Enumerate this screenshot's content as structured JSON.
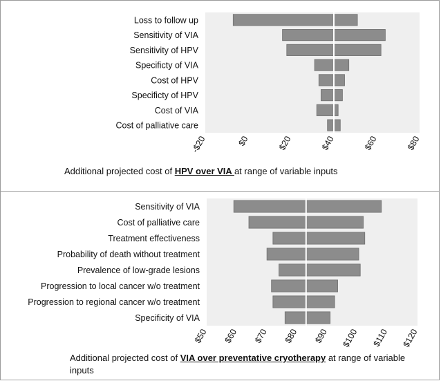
{
  "chart_data": [
    {
      "type": "bar",
      "orientation": "horizontal-tornado",
      "xlim": [
        -20,
        80
      ],
      "x_ticks": [
        "-$20",
        "$0",
        "$20",
        "$40",
        "$60",
        "$80"
      ],
      "x_tick_values": [
        -20,
        0,
        20,
        40,
        60,
        80
      ],
      "base": 40,
      "categories": [
        "Loss to follow up",
        "Sensitivity of VIA",
        "Sensitivity of HPV",
        "Specificty of VIA",
        "Cost of HPV",
        "Specificty of HPV",
        "Cost of VIA",
        "Cost of palliative care"
      ],
      "low": [
        -7,
        16,
        18,
        31,
        33,
        34,
        32,
        37
      ],
      "high": [
        51,
        64,
        62,
        47,
        45,
        44,
        42,
        43
      ],
      "caption_prefix": "Additional projected cost of ",
      "caption_highlight": "HPV over VIA ",
      "caption_suffix": " at range of variable inputs"
    },
    {
      "type": "bar",
      "orientation": "horizontal-tornado",
      "xlim": [
        50,
        120
      ],
      "x_ticks": [
        "$50",
        "$60",
        "$70",
        "$80",
        "$90",
        "$100",
        "$110",
        "$120"
      ],
      "x_tick_values": [
        50,
        60,
        70,
        80,
        90,
        100,
        110,
        120
      ],
      "base": 83,
      "categories": [
        "Sensitivity of VIA",
        "Cost of palliative care",
        "Treatment effectiveness",
        "Probability of death without treatment",
        "Prevalence of low-grade lesions",
        "Progression to local cancer w/o treatment",
        "Progression to regional cancer w/o treatment",
        "Specificity of VIA"
      ],
      "low": [
        59,
        64,
        72,
        70,
        74,
        71.5,
        72,
        76
      ],
      "high": [
        108,
        102,
        102.5,
        100.5,
        101,
        93.5,
        92.5,
        91
      ],
      "caption_prefix": "Additional projected cost of ",
      "caption_highlight": "VIA over preventative cryotherapy",
      "caption_suffix": "  at range of variable inputs"
    }
  ]
}
